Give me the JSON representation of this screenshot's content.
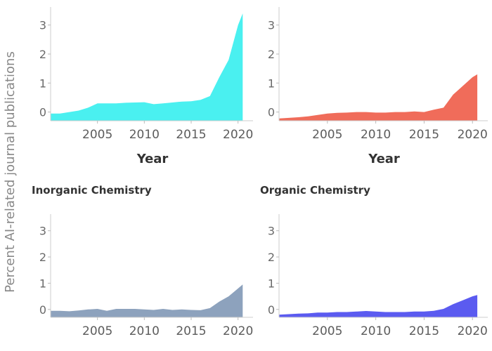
{
  "chart_data": {
    "type": "area",
    "ylabel": "Percent AI-related journal publications",
    "grid": false,
    "shared_y_ticks": [
      "0",
      "1",
      "2",
      "3"
    ],
    "shared_x_ticks": [
      "2005",
      "2010",
      "2015",
      "2020"
    ],
    "panels": [
      {
        "title": "",
        "xlabel": "Year",
        "color": "#4af0f0",
        "xlim": [
          2000,
          2021
        ],
        "ylim": [
          -0.3,
          3.5
        ],
        "series": [
          {
            "x": [
              2000,
              2001,
              2002,
              2003,
              2004,
              2005,
              2006,
              2007,
              2008,
              2009,
              2010,
              2011,
              2012,
              2013,
              2014,
              2015,
              2016,
              2017,
              2018,
              2019,
              2020,
              2020.5
            ],
            "y": [
              -0.05,
              -0.05,
              0.0,
              0.05,
              0.15,
              0.3,
              0.3,
              0.3,
              0.32,
              0.33,
              0.34,
              0.27,
              0.3,
              0.33,
              0.36,
              0.37,
              0.42,
              0.55,
              1.2,
              1.8,
              3.0,
              3.4
            ]
          }
        ]
      },
      {
        "title": "",
        "xlabel": "Year",
        "color": "#f06c5a",
        "xlim": [
          2000,
          2021
        ],
        "ylim": [
          -0.3,
          3.5
        ],
        "series": [
          {
            "x": [
              2000,
              2001,
              2002,
              2003,
              2004,
              2005,
              2006,
              2007,
              2008,
              2009,
              2010,
              2011,
              2012,
              2013,
              2014,
              2015,
              2016,
              2017,
              2018,
              2019,
              2020,
              2020.5
            ],
            "y": [
              -0.22,
              -0.2,
              -0.18,
              -0.15,
              -0.1,
              -0.05,
              -0.03,
              -0.02,
              0.0,
              0.0,
              -0.02,
              -0.02,
              0.0,
              0.0,
              0.02,
              0.0,
              0.08,
              0.15,
              0.6,
              0.9,
              1.2,
              1.3
            ]
          }
        ]
      },
      {
        "title": "Inorganic Chemistry",
        "xlabel": "",
        "color": "#8da2bd",
        "xlim": [
          2000,
          2021
        ],
        "ylim": [
          -0.3,
          3.5
        ],
        "series": [
          {
            "x": [
              2000,
              2001,
              2002,
              2003,
              2004,
              2005,
              2006,
              2007,
              2008,
              2009,
              2010,
              2011,
              2012,
              2013,
              2014,
              2015,
              2016,
              2017,
              2018,
              2019,
              2020,
              2020.5
            ],
            "y": [
              -0.05,
              -0.05,
              -0.07,
              -0.04,
              0.0,
              0.02,
              -0.05,
              0.02,
              0.02,
              0.02,
              0.0,
              -0.02,
              0.02,
              -0.02,
              0.0,
              -0.02,
              -0.03,
              0.05,
              0.3,
              0.5,
              0.8,
              0.95
            ]
          }
        ]
      },
      {
        "title": "Organic Chemistry",
        "xlabel": "",
        "color": "#5b5bf0",
        "xlim": [
          2000,
          2021
        ],
        "ylim": [
          -0.3,
          3.5
        ],
        "series": [
          {
            "x": [
              2000,
              2001,
              2002,
              2003,
              2004,
              2005,
              2006,
              2007,
              2008,
              2009,
              2010,
              2011,
              2012,
              2013,
              2014,
              2015,
              2016,
              2017,
              2018,
              2019,
              2020,
              2020.5
            ],
            "y": [
              -0.2,
              -0.18,
              -0.16,
              -0.15,
              -0.12,
              -0.12,
              -0.1,
              -0.1,
              -0.08,
              -0.06,
              -0.08,
              -0.1,
              -0.1,
              -0.1,
              -0.08,
              -0.08,
              -0.05,
              0.02,
              0.2,
              0.35,
              0.5,
              0.55
            ]
          }
        ]
      }
    ]
  }
}
